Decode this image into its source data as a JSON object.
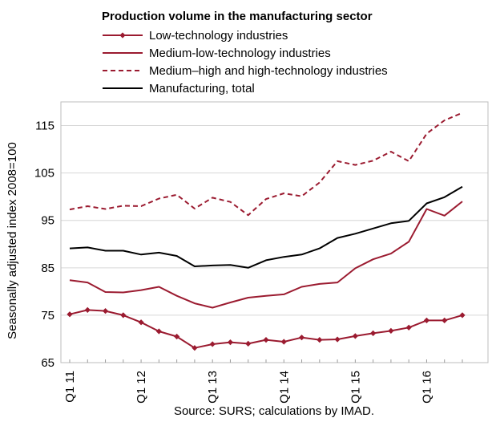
{
  "chart_data": {
    "type": "line",
    "title": "Production volume in the manufacturing sector",
    "ylabel": "Seasonally adjusted index 2008=100",
    "xlabel": "",
    "source": "Source: SURS; calculations by IMAD.",
    "ylim": [
      65,
      120
    ],
    "yticks": [
      65,
      75,
      85,
      95,
      105,
      115
    ],
    "grid": "horizontal",
    "legend_position": "top",
    "x": [
      "Q1 11",
      "Q2 11",
      "Q3 11",
      "Q4 11",
      "Q1 12",
      "Q2 12",
      "Q3 12",
      "Q4 12",
      "Q1 13",
      "Q2 13",
      "Q3 13",
      "Q4 13",
      "Q1 14",
      "Q2 14",
      "Q3 14",
      "Q4 14",
      "Q1 15",
      "Q2 15",
      "Q3 15",
      "Q4 15",
      "Q1 16",
      "Q2 16",
      "Q3 16"
    ],
    "xtick_labels": [
      "Q1 11",
      "Q1 12",
      "Q1 13",
      "Q1 14",
      "Q1 15",
      "Q1 16"
    ],
    "series": [
      {
        "name": "Low-technology industries",
        "color": "#9b1b30",
        "style": "solid-diamond",
        "values": [
          75.2,
          76.1,
          75.9,
          75.0,
          73.5,
          71.6,
          70.5,
          68.1,
          68.9,
          69.3,
          69.0,
          69.8,
          69.4,
          70.3,
          69.8,
          69.9,
          70.6,
          71.2,
          71.7,
          72.4,
          73.9,
          73.9,
          75.0
        ]
      },
      {
        "name": "Medium-low-technology industries",
        "color": "#9b1b30",
        "style": "solid",
        "values": [
          82.4,
          81.9,
          79.9,
          79.8,
          80.3,
          81.0,
          79.1,
          77.5,
          76.6,
          77.7,
          78.7,
          79.1,
          79.4,
          81.0,
          81.6,
          81.9,
          84.9,
          86.8,
          88.0,
          90.5,
          97.4,
          96.0,
          99.0
        ]
      },
      {
        "name": "Medium–high and high-technology industries",
        "color": "#9b1b30",
        "style": "dashed",
        "values": [
          97.3,
          98.0,
          97.4,
          98.1,
          98.0,
          99.6,
          100.4,
          97.5,
          99.8,
          98.9,
          96.1,
          99.5,
          100.7,
          100.1,
          103.0,
          107.5,
          106.7,
          107.6,
          109.5,
          107.5,
          113.3,
          116.1,
          117.7
        ]
      },
      {
        "name": "Manufacturing, total",
        "color": "#000000",
        "style": "solid",
        "values": [
          89.1,
          89.3,
          88.6,
          88.6,
          87.8,
          88.2,
          87.5,
          85.3,
          85.5,
          85.6,
          85.0,
          86.6,
          87.3,
          87.8,
          89.1,
          91.3,
          92.2,
          93.3,
          94.4,
          94.9,
          98.6,
          99.9,
          102.1
        ]
      }
    ]
  }
}
